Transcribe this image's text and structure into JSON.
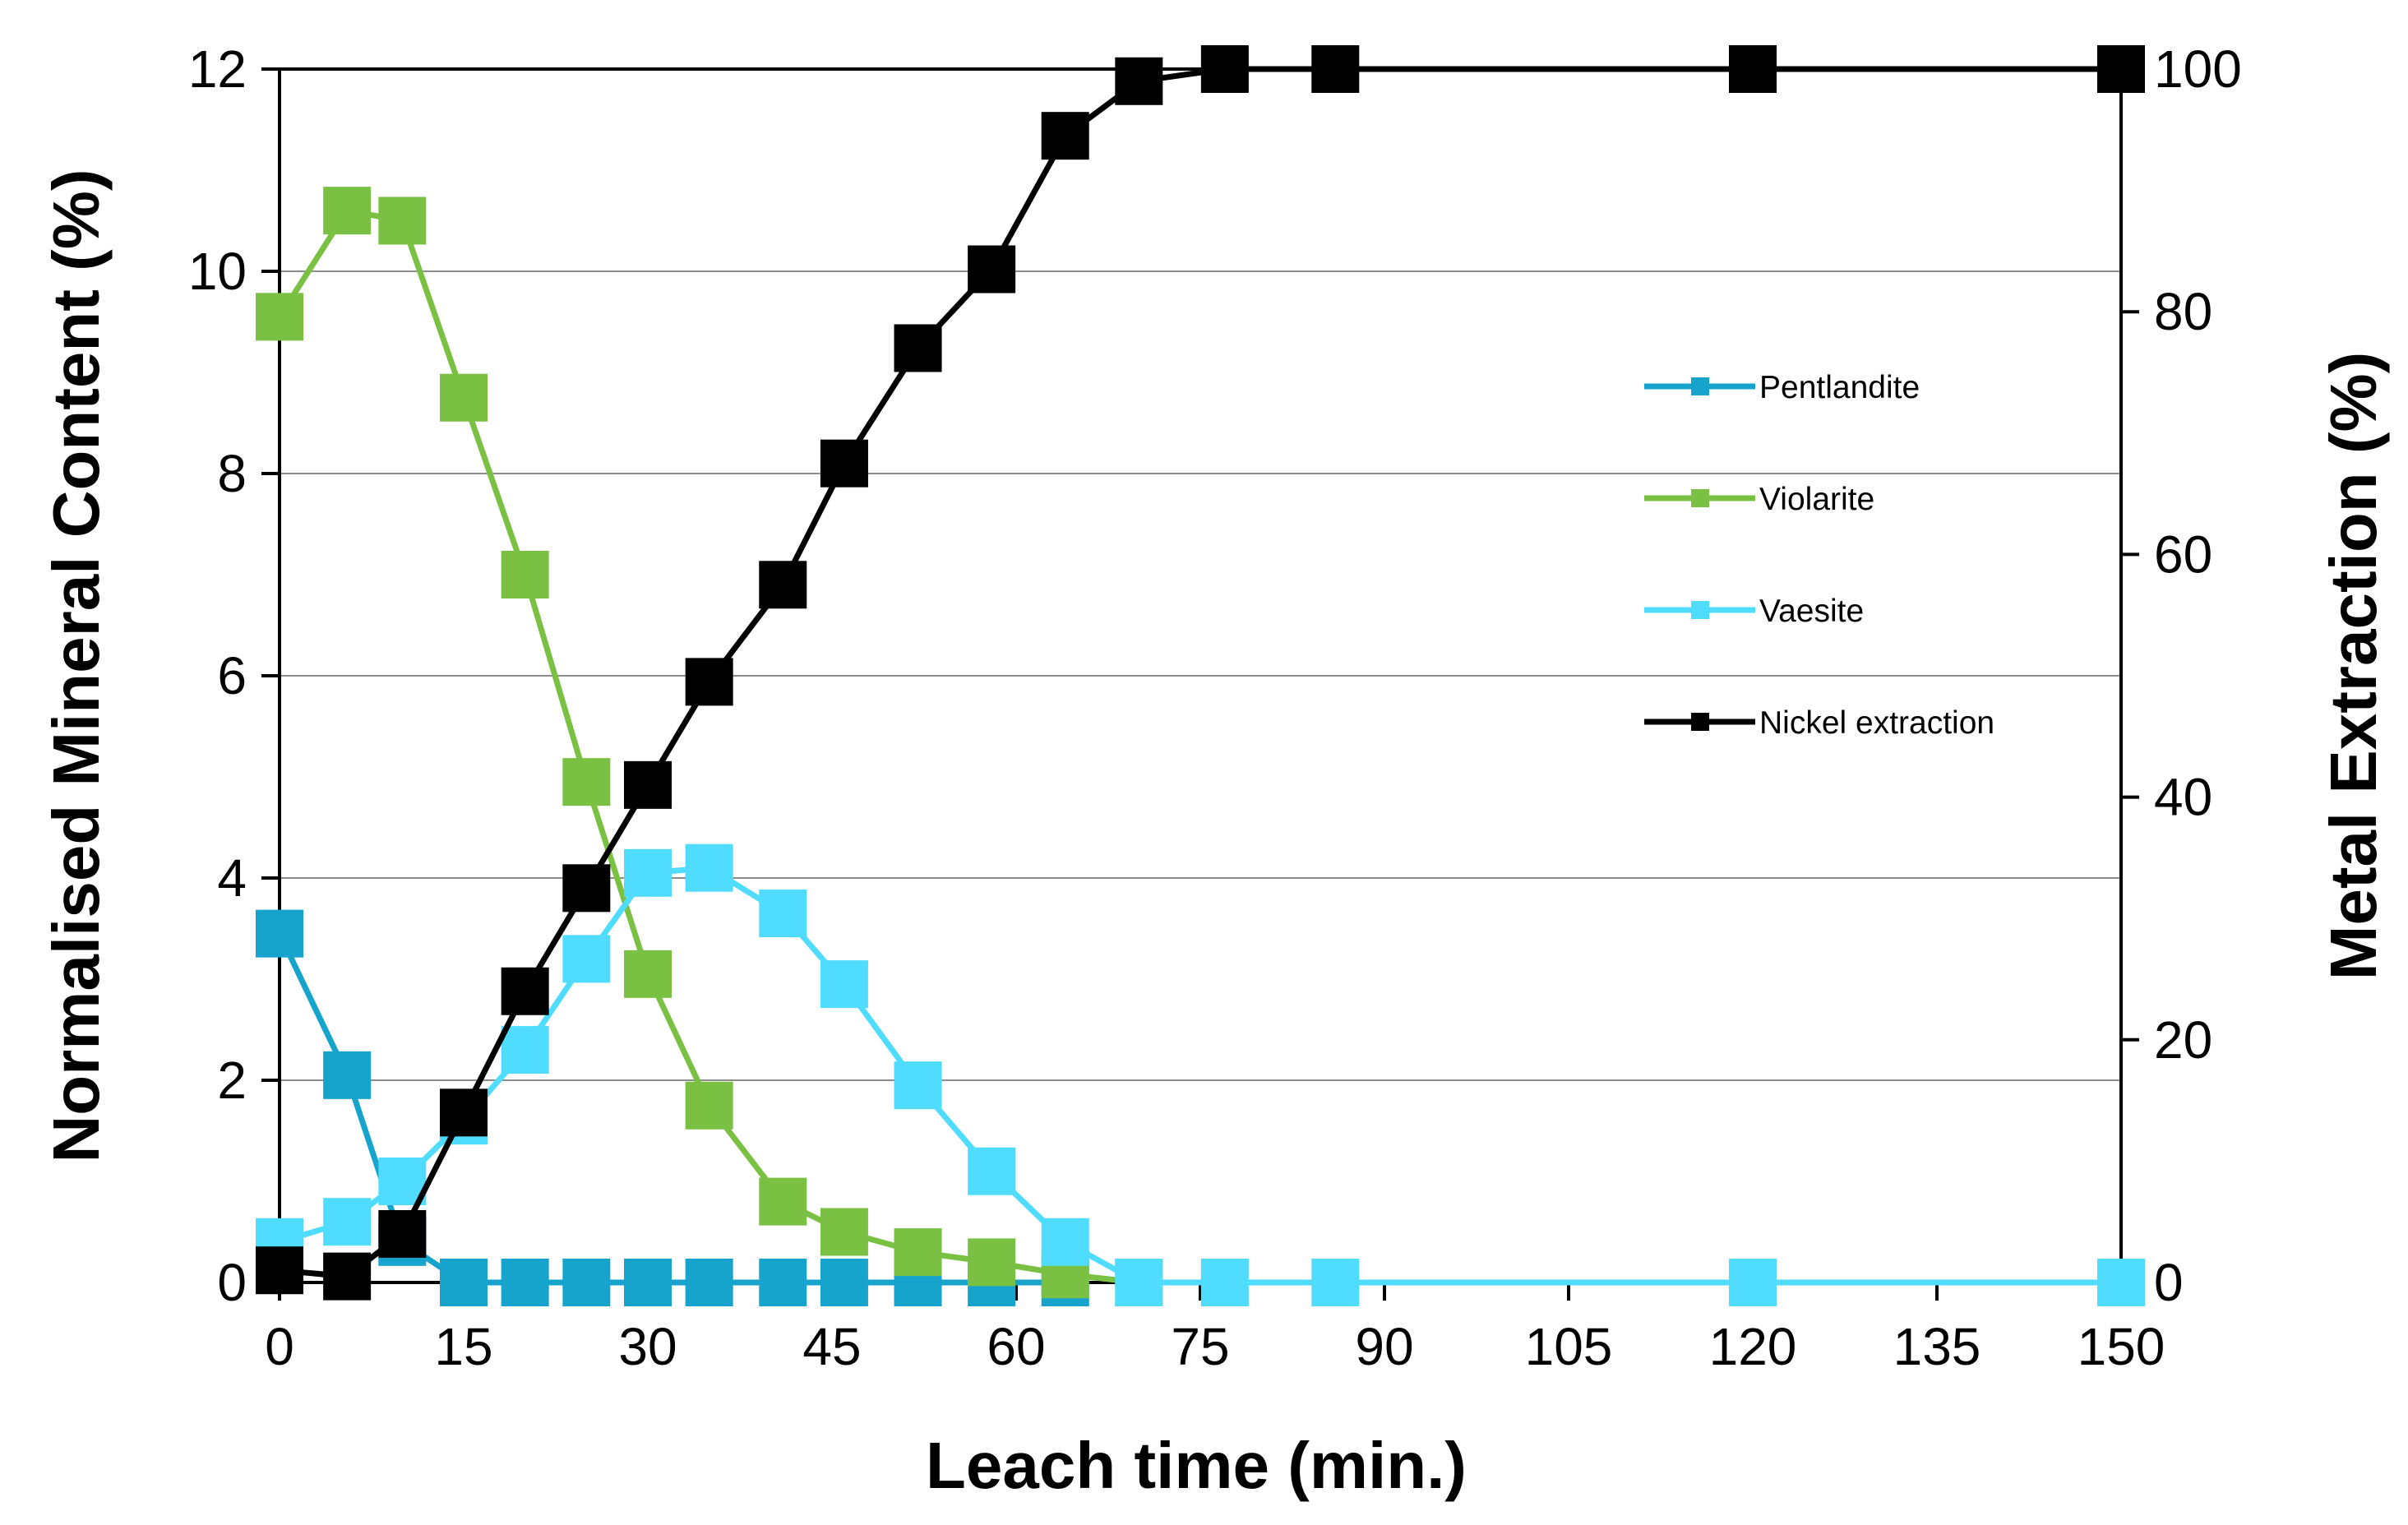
{
  "chart_data": {
    "type": "line",
    "title": "",
    "xlabel": "Leach time (min.)",
    "ylabel": "Normalised Mineral Content (%)",
    "y2label": "Metal Extraction (%)",
    "xlim": [
      0,
      150
    ],
    "ylim": [
      0,
      12
    ],
    "y2lim": [
      0,
      100
    ],
    "xticks": [
      0,
      15,
      30,
      45,
      60,
      75,
      90,
      105,
      120,
      135,
      150
    ],
    "yticks": [
      0,
      2,
      4,
      6,
      8,
      10,
      12
    ],
    "y2ticks": [
      0,
      20,
      40,
      60,
      80,
      100
    ],
    "grid": "horizontal",
    "legend_position": "right",
    "series": [
      {
        "name": "Pentlandite",
        "axis": "left",
        "color": "#16a3cc",
        "x": [
          0,
          5.5,
          10,
          15,
          20,
          25,
          30,
          35,
          41,
          46,
          52,
          58,
          64
        ],
        "y": [
          3.45,
          2.05,
          0.4,
          0,
          0,
          0,
          0,
          0,
          0,
          0,
          0,
          0,
          0
        ]
      },
      {
        "name": "Violarite",
        "axis": "left",
        "color": "#7ac143",
        "x": [
          0,
          5.5,
          10,
          15,
          20,
          25,
          30,
          35,
          41,
          46,
          52,
          58,
          64,
          70
        ],
        "y": [
          9.55,
          10.6,
          10.5,
          8.75,
          7.0,
          4.95,
          3.05,
          1.75,
          0.8,
          0.5,
          0.3,
          0.2,
          0.08,
          0
        ]
      },
      {
        "name": "Vaesite",
        "axis": "left",
        "color": "#4fdcff",
        "x": [
          0,
          5.5,
          10,
          15,
          20,
          25,
          30,
          35,
          41,
          46,
          52,
          58,
          64,
          70,
          77,
          86,
          120,
          150
        ],
        "y": [
          0.4,
          0.6,
          1.0,
          1.6,
          2.3,
          3.2,
          4.05,
          4.1,
          3.65,
          2.95,
          1.95,
          1.1,
          0.4,
          0,
          0,
          0,
          0,
          0
        ]
      },
      {
        "name": "Nickel extraction",
        "axis": "right",
        "color": "#000000",
        "x": [
          0,
          5.5,
          10,
          15,
          20,
          25,
          30,
          35,
          41,
          46,
          52,
          58,
          64,
          70,
          77,
          86,
          120,
          150
        ],
        "y": [
          1,
          0.5,
          4,
          14,
          24,
          32.5,
          41,
          49.5,
          57.5,
          67.5,
          77,
          83.5,
          94.5,
          99,
          100,
          100,
          100,
          100
        ]
      }
    ]
  }
}
